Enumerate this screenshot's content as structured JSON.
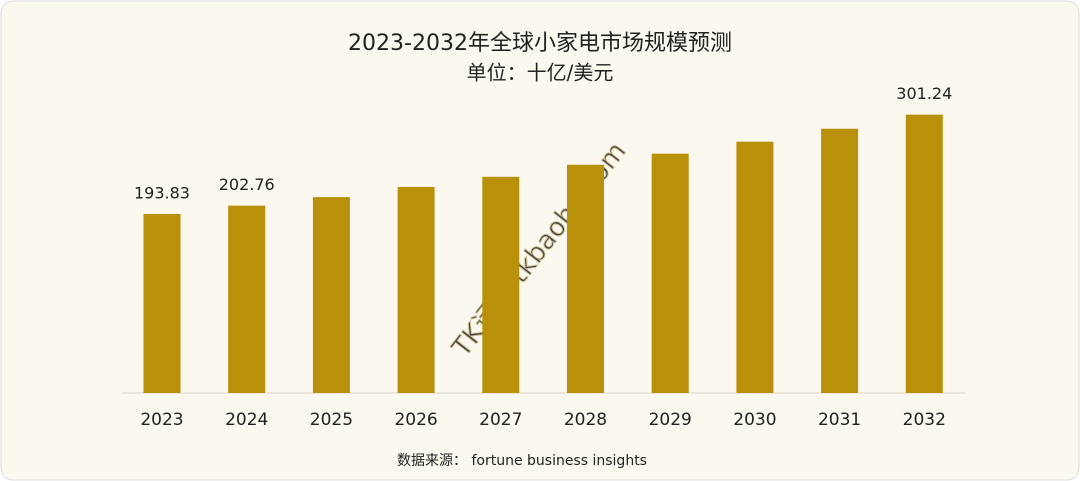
{
  "chart_data": {
    "type": "bar",
    "title": "2023-2032年全球小家电市场规模预测",
    "subtitle": "单位：十亿/美元",
    "categories": [
      "2023",
      "2024",
      "2025",
      "2026",
      "2027",
      "2028",
      "2029",
      "2030",
      "2031",
      "2032"
    ],
    "values": [
      193.83,
      202.76,
      212,
      223,
      234,
      247,
      259,
      272,
      286,
      301.24
    ],
    "value_labels": [
      "193.83",
      "202.76",
      null,
      null,
      null,
      null,
      null,
      null,
      null,
      "301.24"
    ],
    "color": "#b8900a",
    "source": "数据来源：  fortune business insights",
    "watermark": "TK运盒  tkbaohe.com"
  }
}
